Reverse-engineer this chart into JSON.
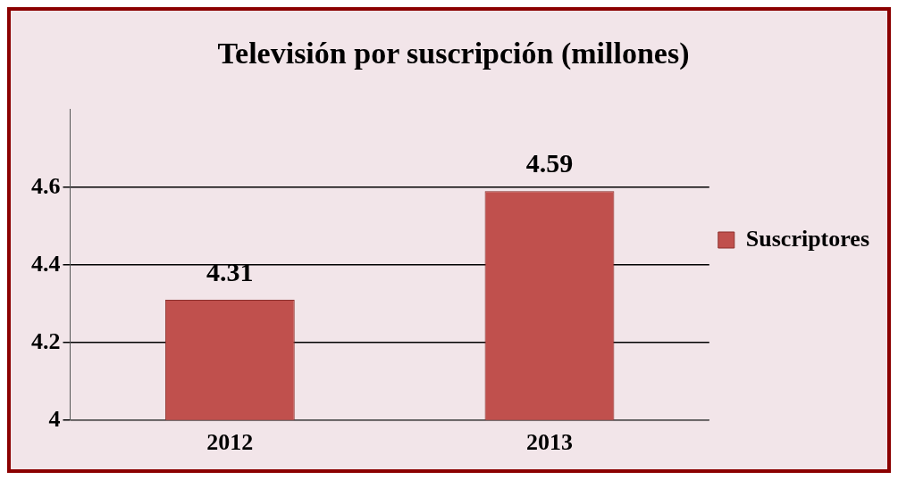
{
  "chart_data": {
    "type": "bar",
    "title": "Televisión por suscripción (millones)",
    "categories": [
      "2012",
      "2013"
    ],
    "series": [
      {
        "name": "Suscriptores",
        "color": "#c0504d",
        "values": [
          4.31,
          4.59
        ]
      }
    ],
    "ylim": [
      4,
      4.8
    ],
    "yticks": [
      4,
      4.2,
      4.4,
      4.6
    ],
    "grid": "y",
    "legend": "right",
    "data_labels": true
  }
}
